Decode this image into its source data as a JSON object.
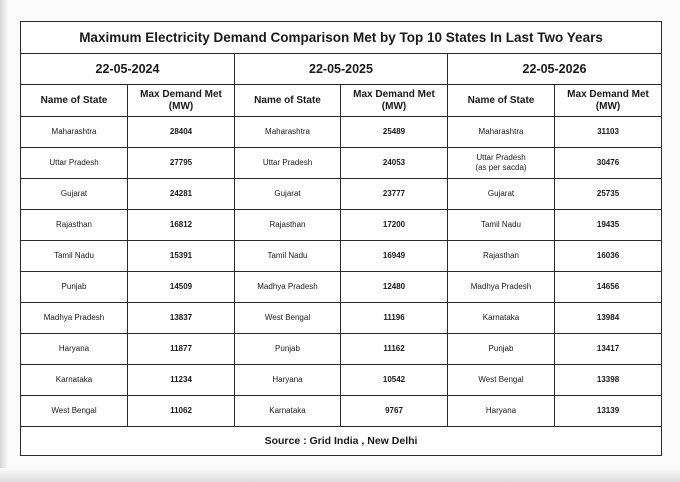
{
  "title": "Maximum Electricity Demand Comparison Met by Top 10 States In Last Two Years",
  "dates": [
    "22-05-2024",
    "22-05-2025",
    "22-05-2026"
  ],
  "headers": {
    "state": "Name of State",
    "demand_line1": "Max Demand Met",
    "demand_line2": "(MW)"
  },
  "rows": [
    [
      "Maharashtra",
      "28404",
      "Maharashtra",
      "25489",
      "Maharashtra",
      "31103"
    ],
    [
      "Uttar Pradesh",
      "27795",
      "Uttar Pradesh",
      "24053",
      "Uttar Pradesh",
      "30476"
    ],
    [
      "Gujarat",
      "24281",
      "Gujarat",
      "23777",
      "Gujarat",
      "25735"
    ],
    [
      "Rajasthan",
      "16812",
      "Rajasthan",
      "17200",
      "Tamil Nadu",
      "19435"
    ],
    [
      "Tamil Nadu",
      "15391",
      "Tamil Nadu",
      "16949",
      "Rajasthan",
      "16036"
    ],
    [
      "Punjab",
      "14509",
      "Madhya Pradesh",
      "12480",
      "Madhya Pradesh",
      "14656"
    ],
    [
      "Madhya Pradesh",
      "13837",
      "West Bengal",
      "11196",
      "Karnataka",
      "13984"
    ],
    [
      "Haryana",
      "11877",
      "Punjab",
      "11162",
      "Punjab",
      "13417"
    ],
    [
      "Karnataka",
      "11234",
      "Haryana",
      "10542",
      "West Bengal",
      "13398"
    ],
    [
      "West Bengal",
      "11062",
      "Karnataka",
      "9767",
      "Haryana",
      "13139"
    ]
  ],
  "notes": {
    "up_2026_note": "(as per sacda)"
  },
  "source": "Source : Grid India , New Delhi"
}
